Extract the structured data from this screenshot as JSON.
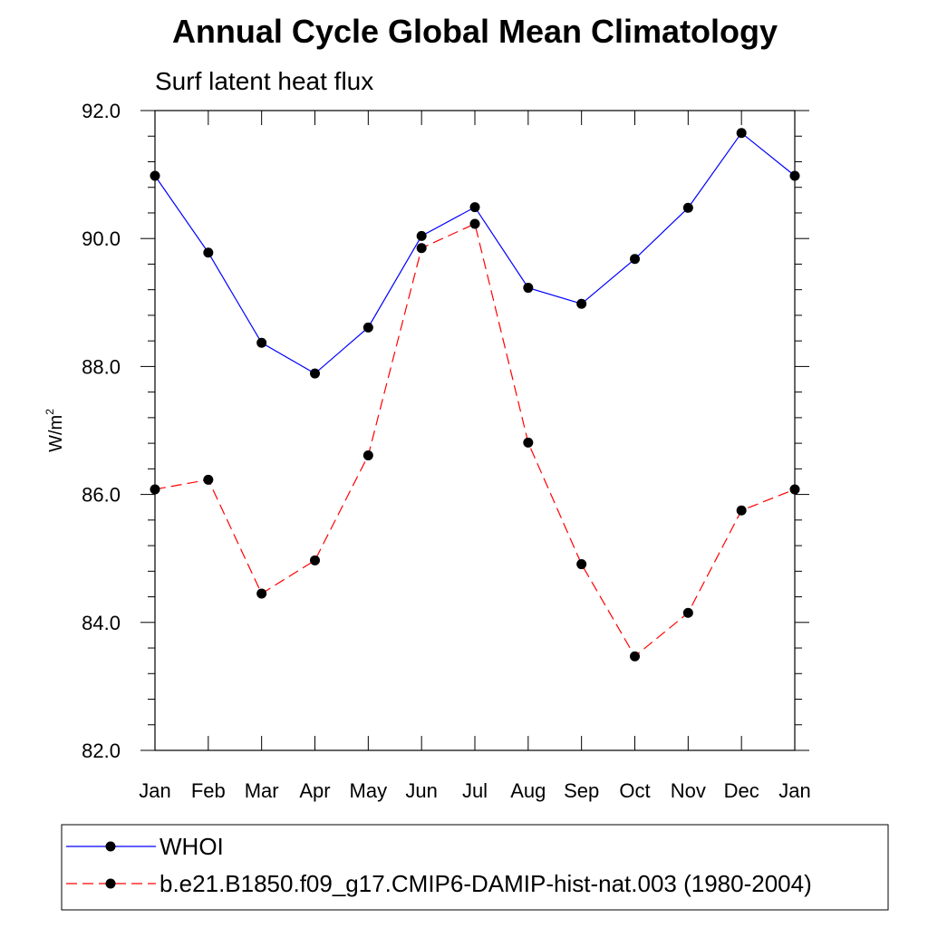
{
  "chart_data": {
    "type": "line",
    "title": "Annual Cycle Global Mean Climatology",
    "subtitle": "Surf latent heat flux",
    "ylabel_base": "W/m",
    "ylabel_sup": "2",
    "xlabel": "",
    "categories": [
      "Jan",
      "Feb",
      "Mar",
      "Apr",
      "May",
      "Jun",
      "Jul",
      "Aug",
      "Sep",
      "Oct",
      "Nov",
      "Dec",
      "Jan"
    ],
    "ylim": [
      82.0,
      92.0
    ],
    "yticks": [
      "82.0",
      "84.0",
      "86.0",
      "88.0",
      "90.0",
      "92.0"
    ],
    "grid": false,
    "legend_position": "bottom",
    "series": [
      {
        "name": "WHOI",
        "color": "#0000ff",
        "style": "solid",
        "values": [
          90.98,
          89.78,
          88.37,
          87.89,
          88.61,
          90.04,
          90.49,
          89.23,
          88.98,
          89.68,
          90.48,
          91.65,
          90.98
        ]
      },
      {
        "name": "b.e21.B1850.f09_g17.CMIP6-DAMIP-hist-nat.003 (1980-2004)",
        "color": "#ff0000",
        "style": "dashed",
        "values": [
          86.08,
          86.23,
          84.45,
          84.97,
          86.61,
          89.85,
          90.23,
          86.81,
          84.91,
          83.47,
          84.15,
          85.75,
          86.08
        ]
      }
    ]
  }
}
